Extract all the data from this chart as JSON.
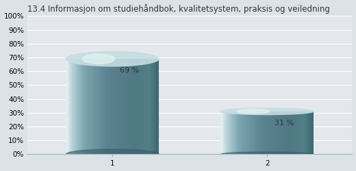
{
  "title": "13.4 Informasjon om studiehåndbok, kvalitetsystem, praksis og veiledning",
  "categories": [
    "1",
    "2"
  ],
  "values": [
    69,
    31
  ],
  "labels": [
    "69 %",
    "31 %"
  ],
  "bar_color_left_edge": "#c8dde0",
  "bar_color_left": "#8ab0b8",
  "bar_color_mid": "#5a7e88",
  "bar_color_right": "#4a6e78",
  "bar_color_dark_right": "#3a5560",
  "top_highlight": "#d0e5e8",
  "ylim": [
    0,
    100
  ],
  "yticks": [
    0,
    10,
    20,
    30,
    40,
    50,
    60,
    70,
    80,
    90,
    100
  ],
  "ytick_labels": [
    "0%",
    "10%",
    "20%",
    "30%",
    "40%",
    "50%",
    "60%",
    "70%",
    "80%",
    "90%",
    "100%"
  ],
  "background_color": "#dce3e8",
  "plot_bg_color": "#e4e8ec",
  "grid_color": "#ffffff",
  "title_fontsize": 8.5,
  "label_fontsize": 8,
  "tick_fontsize": 7.5,
  "bar_width": 0.6
}
